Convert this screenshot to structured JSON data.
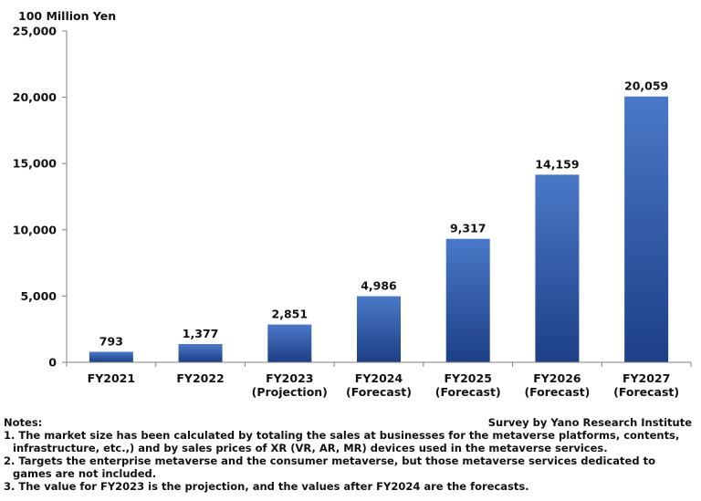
{
  "chart_data": {
    "type": "bar",
    "unit_label": "100 Million Yen",
    "categories": [
      [
        "FY2021"
      ],
      [
        "FY2022"
      ],
      [
        "FY2023",
        "(Projection)"
      ],
      [
        "FY2024",
        "(Forecast)"
      ],
      [
        "FY2025",
        "(Forecast)"
      ],
      [
        "FY2026",
        "(Forecast)"
      ],
      [
        "FY2027",
        "(Forecast)"
      ]
    ],
    "values": [
      793,
      1377,
      2851,
      4986,
      9317,
      14159,
      20059
    ],
    "data_labels": [
      "793",
      "1,377",
      "2,851",
      "4,986",
      "9,317",
      "14,159",
      "20,059"
    ],
    "ylim": [
      0,
      25000
    ],
    "yticks": [
      0,
      5000,
      10000,
      15000,
      20000,
      25000
    ],
    "ytick_labels": [
      "0",
      "5,000",
      "10,000",
      "15,000",
      "20,000",
      "25,000"
    ],
    "colors": {
      "bar_top": "#4a78c8",
      "bar_bottom": "#1d3f86",
      "axis": "#808080"
    },
    "grid": false
  },
  "notes": {
    "heading": "Notes:",
    "source": "Survey by Yano Research Institute",
    "items": [
      "1. The market size has been calculated by totaling the sales at businesses for the metaverse platforms, contents, infrastructure, etc.,) and by sales prices of XR (VR, AR, MR) devices used in the metaverse services.",
      "2. Targets the enterprise metaverse and the consumer metaverse, but those metaverse services dedicated to games are not included.",
      "3. The value for FY2023 is the projection, and the values after FY2024 are the forecasts."
    ]
  }
}
